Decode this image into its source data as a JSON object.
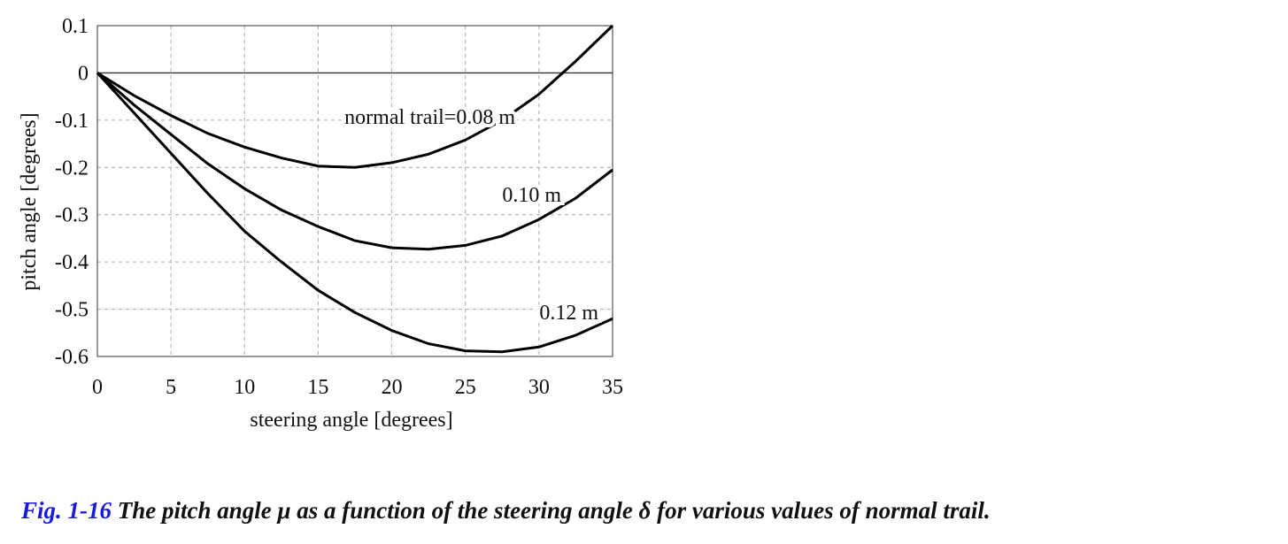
{
  "chart_data": {
    "type": "line",
    "xlabel": "steering angle [degrees]",
    "ylabel": "pitch angle [degrees]",
    "xlim": [
      0,
      35
    ],
    "ylim": [
      -0.6,
      0.1
    ],
    "xticks": [
      "0",
      "5",
      "10",
      "15",
      "20",
      "25",
      "30",
      "35"
    ],
    "yticks": [
      "0.1",
      "0",
      "-0.1",
      "-0.2",
      "-0.3",
      "-0.4",
      "-0.5",
      "-0.6"
    ],
    "grid": true,
    "x": [
      0,
      2.5,
      5,
      7.5,
      10,
      12.5,
      15,
      17.5,
      20,
      22.5,
      25,
      27.5,
      30,
      32.5,
      35
    ],
    "series": [
      {
        "name": "normal trail=0.08 m",
        "values": [
          0,
          -0.048,
          -0.09,
          -0.128,
          -0.157,
          -0.18,
          -0.197,
          -0.2,
          -0.19,
          -0.172,
          -0.142,
          -0.1,
          -0.045,
          0.025,
          0.1
        ]
      },
      {
        "name": "0.10 m",
        "values": [
          0,
          -0.068,
          -0.13,
          -0.192,
          -0.245,
          -0.29,
          -0.325,
          -0.355,
          -0.37,
          -0.373,
          -0.365,
          -0.345,
          -0.31,
          -0.265,
          -0.205
        ]
      },
      {
        "name": "0.12 m",
        "values": [
          0,
          -0.085,
          -0.17,
          -0.255,
          -0.335,
          -0.4,
          -0.46,
          -0.507,
          -0.545,
          -0.573,
          -0.588,
          -0.59,
          -0.58,
          -0.555,
          -0.52
        ]
      }
    ],
    "annotations": [
      "normal trail=0.08 m",
      "0.10 m",
      "0.12 m"
    ]
  },
  "caption": {
    "label": "Fig. 1-16",
    "text": " The pitch angle μ as a function of the steering angle δ for various values of normal trail.",
    "label_color": "#1a1adc"
  }
}
